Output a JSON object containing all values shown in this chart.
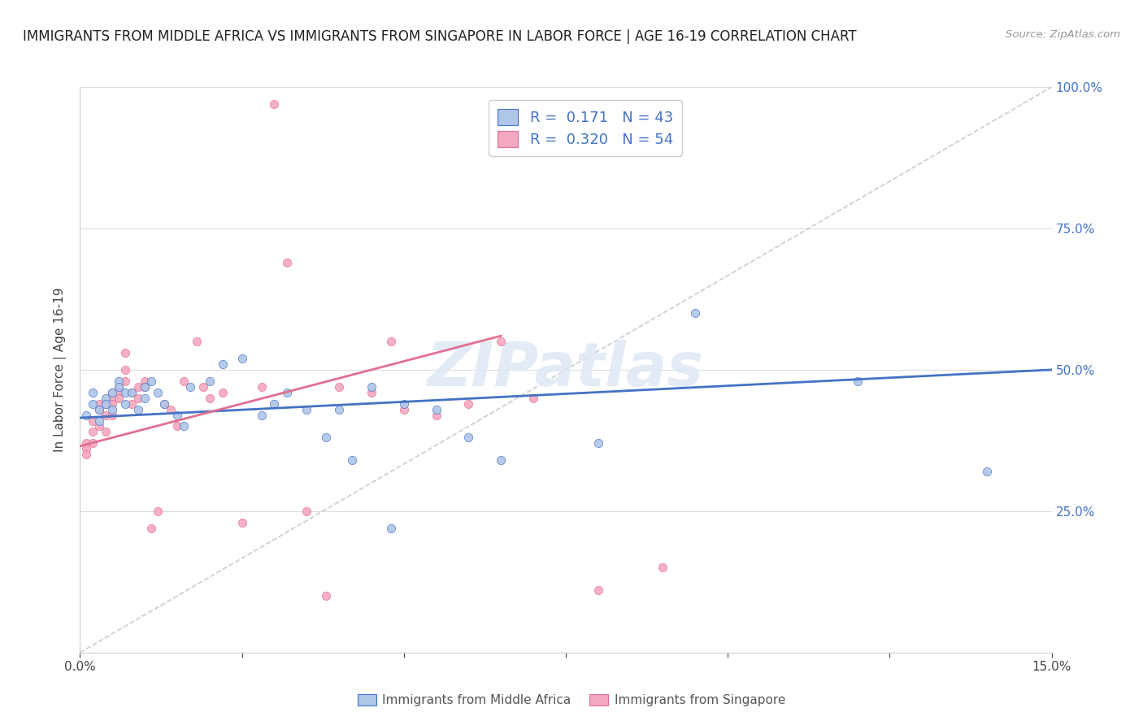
{
  "title": "IMMIGRANTS FROM MIDDLE AFRICA VS IMMIGRANTS FROM SINGAPORE IN LABOR FORCE | AGE 16-19 CORRELATION CHART",
  "source": "Source: ZipAtlas.com",
  "ylabel": "In Labor Force | Age 16-19",
  "xlim": [
    0.0,
    0.15
  ],
  "ylim": [
    0.0,
    1.0
  ],
  "xticks": [
    0.0,
    0.025,
    0.05,
    0.075,
    0.1,
    0.125,
    0.15
  ],
  "yticks": [
    0.0,
    0.25,
    0.5,
    0.75,
    1.0
  ],
  "xtick_labels": [
    "0.0%",
    "",
    "",
    "",
    "",
    "",
    "15.0%"
  ],
  "ytick_labels_right": [
    "",
    "25.0%",
    "50.0%",
    "75.0%",
    "100.0%"
  ],
  "blue_R": 0.171,
  "blue_N": 43,
  "pink_R": 0.32,
  "pink_N": 54,
  "blue_color": "#aec6e8",
  "pink_color": "#f4a8bf",
  "blue_line_color": "#4472c4",
  "pink_line_color": "#e07090",
  "diagonal_color": "#cccccc",
  "legend_text_color": "#4472c4",
  "watermark": "ZIPatlas",
  "blue_line_x": [
    0.0,
    0.15
  ],
  "blue_line_y": [
    0.415,
    0.5
  ],
  "pink_line_x": [
    0.0,
    0.065
  ],
  "pink_line_y": [
    0.365,
    0.56
  ],
  "blue_scatter_x": [
    0.001,
    0.002,
    0.002,
    0.003,
    0.003,
    0.004,
    0.004,
    0.005,
    0.005,
    0.006,
    0.006,
    0.007,
    0.007,
    0.008,
    0.009,
    0.01,
    0.01,
    0.011,
    0.012,
    0.013,
    0.015,
    0.016,
    0.017,
    0.02,
    0.022,
    0.025,
    0.028,
    0.03,
    0.032,
    0.035,
    0.038,
    0.04,
    0.042,
    0.045,
    0.048,
    0.05,
    0.055,
    0.06,
    0.065,
    0.08,
    0.095,
    0.12,
    0.14
  ],
  "blue_scatter_y": [
    0.42,
    0.46,
    0.44,
    0.41,
    0.43,
    0.45,
    0.44,
    0.46,
    0.43,
    0.48,
    0.47,
    0.46,
    0.44,
    0.46,
    0.43,
    0.47,
    0.45,
    0.48,
    0.46,
    0.44,
    0.42,
    0.4,
    0.47,
    0.48,
    0.51,
    0.52,
    0.42,
    0.44,
    0.46,
    0.43,
    0.38,
    0.43,
    0.34,
    0.47,
    0.22,
    0.44,
    0.43,
    0.38,
    0.34,
    0.37,
    0.6,
    0.48,
    0.32
  ],
  "pink_scatter_x": [
    0.001,
    0.001,
    0.001,
    0.002,
    0.002,
    0.002,
    0.003,
    0.003,
    0.003,
    0.004,
    0.004,
    0.004,
    0.005,
    0.005,
    0.005,
    0.005,
    0.006,
    0.006,
    0.006,
    0.007,
    0.007,
    0.007,
    0.008,
    0.008,
    0.009,
    0.009,
    0.01,
    0.01,
    0.011,
    0.012,
    0.013,
    0.014,
    0.015,
    0.016,
    0.018,
    0.019,
    0.02,
    0.022,
    0.025,
    0.028,
    0.03,
    0.032,
    0.035,
    0.038,
    0.04,
    0.045,
    0.048,
    0.05,
    0.055,
    0.06,
    0.065,
    0.07,
    0.08,
    0.09
  ],
  "pink_scatter_y": [
    0.37,
    0.36,
    0.35,
    0.41,
    0.39,
    0.37,
    0.44,
    0.43,
    0.4,
    0.44,
    0.42,
    0.39,
    0.46,
    0.45,
    0.44,
    0.42,
    0.47,
    0.46,
    0.45,
    0.53,
    0.5,
    0.48,
    0.46,
    0.44,
    0.47,
    0.45,
    0.48,
    0.47,
    0.22,
    0.25,
    0.44,
    0.43,
    0.4,
    0.48,
    0.55,
    0.47,
    0.45,
    0.46,
    0.23,
    0.47,
    0.97,
    0.69,
    0.25,
    0.1,
    0.47,
    0.46,
    0.55,
    0.43,
    0.42,
    0.44,
    0.55,
    0.45,
    0.11,
    0.15
  ]
}
